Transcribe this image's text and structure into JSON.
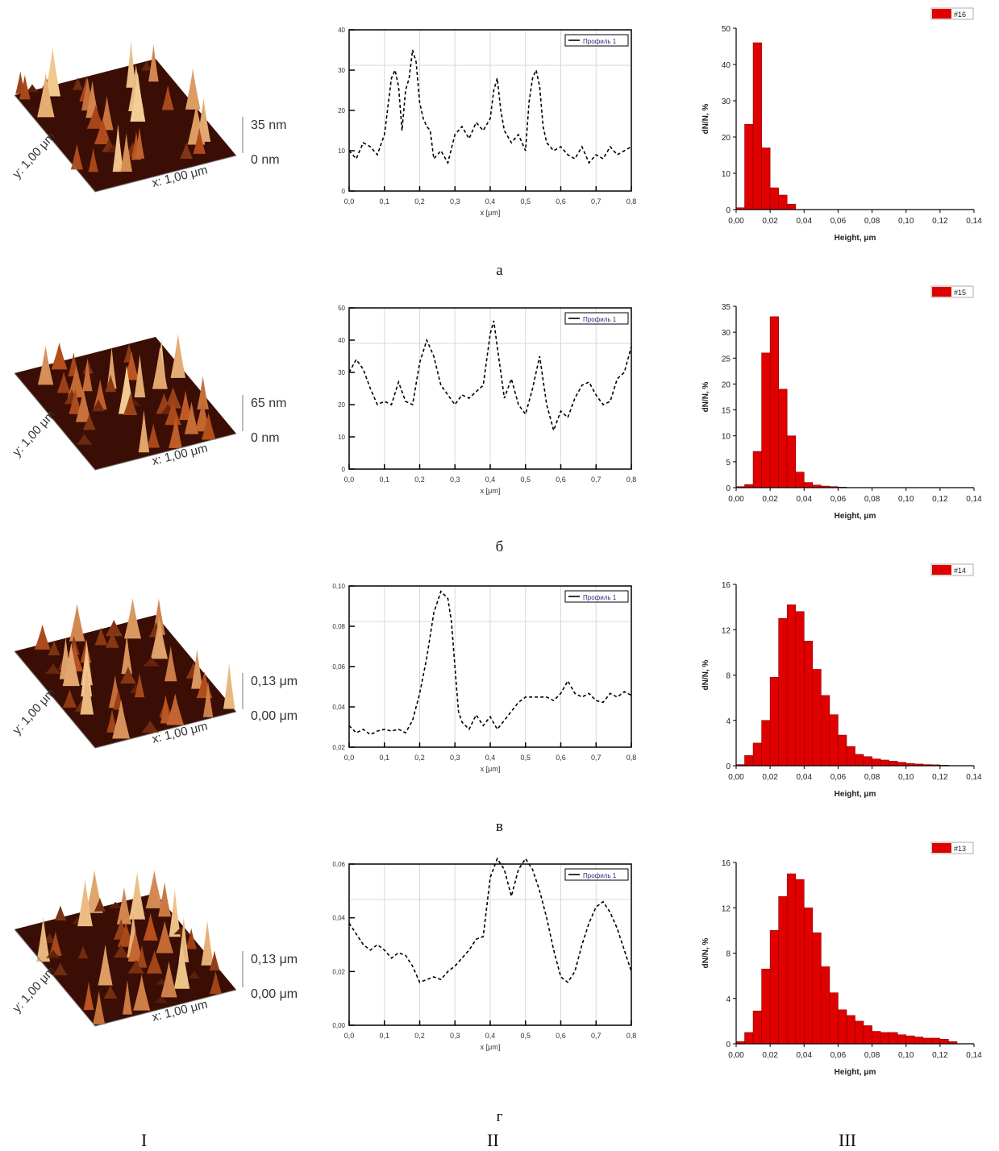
{
  "rows": [
    {
      "label": "а",
      "afm": {
        "zmax": "35 nm",
        "zmin": "0 nm",
        "xlabel": "x: 1,00 μm",
        "ylabel": "y: 1,00 μm",
        "amplitude": 35
      },
      "profile_legend": "Профиль 1",
      "hist_legend": "#16",
      "hist_ylabel": "dN/N, %",
      "hist_xlabel": "Height, μm"
    },
    {
      "label": "б",
      "afm": {
        "zmax": "65 nm",
        "zmin": "0 nm",
        "xlabel": "x: 1,00 μm",
        "ylabel": "y: 1,00 μm",
        "amplitude": 65
      },
      "profile_legend": "Профиль 1",
      "hist_legend": "#15",
      "hist_ylabel": "dN/N, %",
      "hist_xlabel": "Height, μm"
    },
    {
      "label": "в",
      "afm": {
        "zmax": "0,13 μm",
        "zmin": "0,00 μm",
        "xlabel": "x: 1,00 μm",
        "ylabel": "y: 1,00 μm",
        "amplitude": 130
      },
      "profile_legend": "Профиль 1",
      "hist_legend": "#14",
      "hist_ylabel": "dN/N, %",
      "hist_xlabel": "Height, μm"
    },
    {
      "label": "г",
      "afm": {
        "zmax": "0,13 μm",
        "zmin": "0,00 μm",
        "xlabel": "x: 1,00 μm",
        "ylabel": "y: 1,00 μm",
        "amplitude": 130
      },
      "profile_legend": "Профиль 1",
      "hist_legend": "#13",
      "hist_ylabel": "dN/N, %",
      "hist_xlabel": "Height, μm"
    }
  ],
  "columns": [
    "I",
    "II",
    "III"
  ],
  "colors": {
    "bar": "#e00000",
    "bar_edge": "#8a0000",
    "line": "#000000",
    "grid": "#d8d8d8",
    "afm_dark": "#3a0e05",
    "afm_mid": "#b8501c",
    "afm_light": "#f6d49a"
  },
  "chart_data": [
    {
      "type": "line",
      "panel": "а-II",
      "series": [
        {
          "name": "Профиль 1",
          "x": [
            0,
            0.02,
            0.04,
            0.06,
            0.08,
            0.1,
            0.12,
            0.13,
            0.14,
            0.15,
            0.16,
            0.17,
            0.18,
            0.19,
            0.2,
            0.21,
            0.22,
            0.23,
            0.24,
            0.26,
            0.28,
            0.3,
            0.32,
            0.34,
            0.36,
            0.38,
            0.4,
            0.41,
            0.42,
            0.43,
            0.44,
            0.46,
            0.48,
            0.5,
            0.51,
            0.52,
            0.53,
            0.54,
            0.55,
            0.56,
            0.58,
            0.6,
            0.62,
            0.64,
            0.66,
            0.68,
            0.7,
            0.72,
            0.74,
            0.76,
            0.78,
            0.8
          ],
          "y": [
            10,
            8,
            12,
            11,
            9,
            14,
            28,
            30,
            26,
            15,
            25,
            28,
            35,
            32,
            22,
            18,
            16,
            15,
            8,
            10,
            7,
            14,
            16,
            13,
            17,
            15,
            18,
            25,
            28,
            20,
            15,
            12,
            14,
            10,
            22,
            28,
            30,
            26,
            16,
            12,
            10,
            11,
            9,
            8,
            11,
            7,
            9,
            8,
            11,
            9,
            10,
            11
          ]
        }
      ],
      "xlim": [
        0,
        0.8
      ],
      "ylim": [
        0,
        40
      ],
      "xticks": [
        "0,0",
        "0,1",
        "0,2",
        "0,3",
        "0,4",
        "0,5",
        "0,6",
        "0,7",
        "0,8"
      ],
      "yticks": [
        "0",
        "10",
        "20",
        "30",
        "40"
      ],
      "xlabel": "x [μm]"
    },
    {
      "type": "line",
      "panel": "б-II",
      "series": [
        {
          "name": "Профиль 1",
          "x": [
            0,
            0.02,
            0.04,
            0.06,
            0.08,
            0.1,
            0.12,
            0.14,
            0.16,
            0.18,
            0.2,
            0.22,
            0.24,
            0.26,
            0.28,
            0.3,
            0.32,
            0.34,
            0.36,
            0.38,
            0.4,
            0.41,
            0.42,
            0.44,
            0.46,
            0.48,
            0.5,
            0.52,
            0.54,
            0.56,
            0.58,
            0.6,
            0.62,
            0.64,
            0.66,
            0.68,
            0.7,
            0.72,
            0.74,
            0.76,
            0.78,
            0.8
          ],
          "y": [
            30,
            34,
            31,
            25,
            20,
            21,
            20,
            27,
            21,
            20,
            33,
            40,
            35,
            26,
            23,
            20,
            23,
            22,
            24,
            26,
            42,
            46,
            38,
            22,
            28,
            20,
            17,
            25,
            35,
            20,
            12,
            18,
            16,
            22,
            26,
            27,
            23,
            20,
            21,
            28,
            30,
            38
          ]
        }
      ],
      "xlim": [
        0,
        0.8
      ],
      "ylim": [
        0,
        50
      ],
      "xticks": [
        "0,0",
        "0,1",
        "0,2",
        "0,3",
        "0,4",
        "0,5",
        "0,6",
        "0,7",
        "0,8"
      ],
      "yticks": [
        "0",
        "10",
        "20",
        "30",
        "40",
        "50"
      ],
      "xlabel": "x [μm]"
    },
    {
      "type": "line",
      "panel": "в-II",
      "series": [
        {
          "name": "Профиль 1",
          "x": [
            0,
            0.02,
            0.04,
            0.06,
            0.08,
            0.1,
            0.12,
            0.14,
            0.16,
            0.18,
            0.2,
            0.22,
            0.24,
            0.26,
            0.28,
            0.29,
            0.3,
            0.31,
            0.32,
            0.34,
            0.36,
            0.38,
            0.4,
            0.42,
            0.44,
            0.46,
            0.48,
            0.5,
            0.52,
            0.54,
            0.56,
            0.58,
            0.6,
            0.62,
            0.64,
            0.66,
            0.68,
            0.7,
            0.72,
            0.74,
            0.76,
            0.78,
            0.8
          ],
          "y": [
            0.022,
            0.018,
            0.02,
            0.017,
            0.019,
            0.02,
            0.019,
            0.02,
            0.018,
            0.025,
            0.04,
            0.06,
            0.085,
            0.097,
            0.093,
            0.08,
            0.055,
            0.03,
            0.024,
            0.02,
            0.028,
            0.022,
            0.027,
            0.02,
            0.025,
            0.03,
            0.035,
            0.038,
            0.038,
            0.038,
            0.038,
            0.036,
            0.04,
            0.047,
            0.04,
            0.038,
            0.04,
            0.036,
            0.035,
            0.04,
            0.038,
            0.041,
            0.039
          ]
        }
      ],
      "xlim": [
        0,
        0.8
      ],
      "ylim": [
        0.01,
        0.1
      ],
      "xticks": [
        "0,0",
        "0,1",
        "0,2",
        "0,3",
        "0,4",
        "0,5",
        "0,6",
        "0,7",
        "0,8"
      ],
      "yticks": [
        "0,02",
        "0,04",
        "0,06",
        "0,08",
        "0,10"
      ],
      "xlabel": "x [μm]"
    },
    {
      "type": "line",
      "panel": "г-II",
      "series": [
        {
          "name": "Профиль 1",
          "x": [
            0,
            0.02,
            0.04,
            0.06,
            0.08,
            0.1,
            0.12,
            0.14,
            0.16,
            0.18,
            0.2,
            0.22,
            0.24,
            0.26,
            0.28,
            0.3,
            0.32,
            0.34,
            0.36,
            0.38,
            0.4,
            0.42,
            0.44,
            0.46,
            0.48,
            0.5,
            0.52,
            0.54,
            0.56,
            0.58,
            0.6,
            0.62,
            0.64,
            0.66,
            0.68,
            0.7,
            0.72,
            0.74,
            0.76,
            0.78,
            0.8
          ],
          "y": [
            0.038,
            0.034,
            0.03,
            0.028,
            0.03,
            0.028,
            0.025,
            0.027,
            0.026,
            0.022,
            0.016,
            0.017,
            0.018,
            0.017,
            0.02,
            0.022,
            0.025,
            0.028,
            0.032,
            0.033,
            0.055,
            0.062,
            0.058,
            0.048,
            0.058,
            0.062,
            0.058,
            0.05,
            0.04,
            0.028,
            0.018,
            0.016,
            0.02,
            0.03,
            0.038,
            0.044,
            0.046,
            0.042,
            0.036,
            0.028,
            0.02
          ]
        }
      ],
      "xlim": [
        0,
        0.8
      ],
      "ylim": [
        0,
        0.06
      ],
      "xticks": [
        "0,0",
        "0,1",
        "0,2",
        "0,3",
        "0,4",
        "0,5",
        "0,6",
        "0,7",
        "0,8"
      ],
      "yticks": [
        "0,00",
        "0,02",
        "0,04",
        "0,06"
      ],
      "xlabel": "x [μm]"
    },
    {
      "type": "bar",
      "panel": "а-III",
      "series": [
        {
          "name": "#16",
          "x": [
            0.0025,
            0.0075,
            0.0125,
            0.0175,
            0.0225,
            0.0275,
            0.0325
          ],
          "values": [
            0.5,
            23.5,
            46,
            17,
            6,
            4,
            1.5
          ]
        }
      ],
      "bin_width": 0.005,
      "xlim": [
        0,
        0.14
      ],
      "ylim": [
        0,
        50
      ],
      "xticks": [
        "0,00",
        "0,02",
        "0,04",
        "0,06",
        "0,08",
        "0,10",
        "0,12",
        "0,14"
      ],
      "yticks": [
        "0",
        "10",
        "20",
        "30",
        "40",
        "50"
      ],
      "xlabel": "Height, μm",
      "ylabel": "dN/N, %"
    },
    {
      "type": "bar",
      "panel": "б-III",
      "series": [
        {
          "name": "#15",
          "x": [
            0.0025,
            0.0075,
            0.0125,
            0.0175,
            0.0225,
            0.0275,
            0.0325,
            0.0375,
            0.0425,
            0.0475,
            0.0525,
            0.0575,
            0.0625
          ],
          "values": [
            0.2,
            0.6,
            7,
            26,
            33,
            19,
            10,
            3,
            1,
            0.5,
            0.3,
            0.2,
            0.1
          ]
        }
      ],
      "bin_width": 0.005,
      "xlim": [
        0,
        0.14
      ],
      "ylim": [
        0,
        35
      ],
      "xticks": [
        "0,00",
        "0,02",
        "0,04",
        "0,06",
        "0,08",
        "0,10",
        "0,12",
        "0,14"
      ],
      "yticks": [
        "0",
        "5",
        "10",
        "15",
        "20",
        "25",
        "30",
        "35"
      ],
      "xlabel": "Height, μm",
      "ylabel": "dN/N, %"
    },
    {
      "type": "bar",
      "panel": "в-III",
      "series": [
        {
          "name": "#14",
          "x": [
            0.0025,
            0.0075,
            0.0125,
            0.0175,
            0.0225,
            0.0275,
            0.0325,
            0.0375,
            0.0425,
            0.0475,
            0.0525,
            0.0575,
            0.0625,
            0.0675,
            0.0725,
            0.0775,
            0.0825,
            0.0875,
            0.0925,
            0.0975,
            0.1025,
            0.1075,
            0.1125,
            0.1175,
            0.1225
          ],
          "values": [
            0.1,
            0.9,
            2,
            4,
            7.8,
            13,
            14.2,
            13.6,
            11,
            8.5,
            6.2,
            4.5,
            2.7,
            1.7,
            1,
            0.8,
            0.6,
            0.5,
            0.4,
            0.3,
            0.2,
            0.15,
            0.1,
            0.08,
            0.05
          ]
        }
      ],
      "bin_width": 0.005,
      "xlim": [
        0,
        0.14
      ],
      "ylim": [
        0,
        16
      ],
      "xticks": [
        "0,00",
        "0,02",
        "0,04",
        "0,06",
        "0,08",
        "0,10",
        "0,12",
        "0,14"
      ],
      "yticks": [
        "0",
        "4",
        "8",
        "12",
        "16"
      ],
      "xlabel": "Height, μm",
      "ylabel": "dN/N, %"
    },
    {
      "type": "bar",
      "panel": "г-III",
      "series": [
        {
          "name": "#13",
          "x": [
            0.0025,
            0.0075,
            0.0125,
            0.0175,
            0.0225,
            0.0275,
            0.0325,
            0.0375,
            0.0425,
            0.0475,
            0.0525,
            0.0575,
            0.0625,
            0.0675,
            0.0725,
            0.0775,
            0.0825,
            0.0875,
            0.0925,
            0.0975,
            0.1025,
            0.1075,
            0.1125,
            0.1175,
            0.1225,
            0.1275
          ],
          "values": [
            0.2,
            1,
            2.9,
            6.6,
            10,
            13,
            15,
            14.5,
            12,
            9.8,
            6.8,
            4.5,
            3,
            2.5,
            2,
            1.6,
            1.1,
            1,
            1,
            0.8,
            0.7,
            0.6,
            0.5,
            0.5,
            0.4,
            0.2
          ]
        }
      ],
      "bin_width": 0.005,
      "xlim": [
        0,
        0.14
      ],
      "ylim": [
        0,
        16
      ],
      "xticks": [
        "0,00",
        "0,02",
        "0,04",
        "0,06",
        "0,08",
        "0,10",
        "0,12",
        "0,14"
      ],
      "yticks": [
        "0",
        "4",
        "8",
        "12",
        "16"
      ],
      "xlabel": "Height, μm",
      "ylabel": "dN/N, %"
    }
  ]
}
